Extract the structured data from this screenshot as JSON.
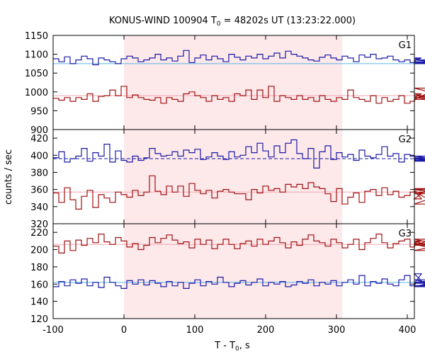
{
  "chart_data": {
    "type": "line",
    "title": "KONUS-WIND 100904 T",
    "title_sub": "0",
    "title_rest": " = 48202s UT (13:23:22.000)",
    "xlabel": "T - T",
    "xlabel_sub": "0",
    "xlabel_rest": ", s",
    "ylabel": "counts / sec",
    "xlim": [
      -100,
      410
    ],
    "xticks": [
      -100,
      0,
      100,
      200,
      300,
      400
    ],
    "shaded_interval": [
      0,
      308
    ],
    "shade_color": "#fde8ea",
    "bin_width": 8,
    "x_start": -100,
    "panels": [
      {
        "name": "G1",
        "ylim": [
          900,
          1150
        ],
        "yticks": [
          900,
          950,
          1000,
          1050,
          1100,
          1150
        ],
        "series": [
          {
            "color": "#1a1aa8",
            "background_level": 1075,
            "background_color": "#5ab4e6",
            "background_dashed": false,
            "values": [
              1088,
              1080,
              1093,
              1075,
              1085,
              1095,
              1088,
              1072,
              1090,
              1085,
              1080,
              1075,
              1088,
              1095,
              1090,
              1080,
              1085,
              1090,
              1100,
              1085,
              1090,
              1082,
              1095,
              1110,
              1078,
              1090,
              1098,
              1085,
              1095,
              1088,
              1080,
              1100,
              1092,
              1085,
              1095,
              1090,
              1100,
              1088,
              1095,
              1103,
              1090,
              1108,
              1100,
              1095,
              1090,
              1085,
              1082,
              1092,
              1098,
              1090,
              1085,
              1095,
              1090,
              1080,
              1098,
              1092,
              1100,
              1088,
              1090,
              1095,
              1085,
              1080,
              1085,
              1078,
              1085,
              1090,
              1080,
              1075,
              1085,
              1078,
              1075
            ]
          },
          {
            "color": "#a01010",
            "background_level": 990,
            "background_color": "#f2a6b4",
            "background_dashed": false,
            "values": [
              983,
              978,
              985,
              975,
              985,
              980,
              995,
              975,
              988,
              990,
              1005,
              990,
              1015,
              985,
              992,
              985,
              980,
              978,
              985,
              970,
              985,
              980,
              975,
              995,
              1000,
              990,
              985,
              975,
              990,
              980,
              985,
              975,
              995,
              990,
              1005,
              980,
              1005,
              985,
              1015,
              975,
              990,
              985,
              980,
              990,
              980,
              985,
              975,
              990,
              980,
              975,
              985,
              980,
              1005,
              985,
              980,
              975,
              990,
              970,
              985,
              975,
              980,
              990,
              970,
              975,
              985,
              995,
              985,
              980,
              1010,
              990,
              980
            ]
          }
        ]
      },
      {
        "name": "G2",
        "ylim": [
          320,
          430
        ],
        "yticks": [
          320,
          340,
          360,
          380,
          400,
          420
        ],
        "series": [
          {
            "color": "#1a1aa8",
            "background_level": 396,
            "background_color": "#5ab4e6",
            "background_dashed": true,
            "values": [
              397,
              404,
              392,
              396,
              399,
              408,
              393,
              403,
              399,
              413,
              392,
              405,
              394,
              392,
              399,
              394,
              397,
              408,
              402,
              399,
              400,
              404,
              399,
              406,
              403,
              407,
              395,
              398,
              403,
              399,
              395,
              404,
              398,
              400,
              410,
              403,
              414,
              405,
              398,
              411,
              403,
              414,
              418,
              402,
              396,
              408,
              385,
              404,
              411,
              395,
              403,
              398,
              401,
              394,
              406,
              399,
              397,
              401,
              410,
              399,
              402,
              392,
              401,
              399,
              395,
              397,
              393,
              396,
              399,
              394,
              399
            ]
          },
          {
            "color": "#a01010",
            "background_level": 357,
            "background_color": "#f2a6b4",
            "background_dashed": false,
            "values": [
              356,
              345,
              362,
              348,
              337,
              352,
              359,
              339,
              354,
              350,
              345,
              357,
              354,
              351,
              359,
              353,
              357,
              376,
              358,
              354,
              364,
              357,
              364,
              352,
              367,
              359,
              355,
              359,
              350,
              358,
              360,
              357,
              355,
              355,
              348,
              360,
              356,
              364,
              359,
              361,
              357,
              366,
              363,
              366,
              361,
              368,
              363,
              361,
              355,
              346,
              361,
              343,
              351,
              356,
              345,
              358,
              360,
              353,
              362,
              354,
              358,
              351,
              353,
              357,
              358,
              349,
              360,
              357,
              343,
              355,
              361
            ]
          }
        ]
      },
      {
        "name": "G3",
        "ylim": [
          120,
          230
        ],
        "yticks": [
          120,
          140,
          160,
          180,
          200,
          220
        ],
        "series": [
          {
            "color": "#a01010",
            "background_level": 206,
            "background_color": "#f2a6b4",
            "background_dashed": false,
            "values": [
              204,
              196,
              210,
              199,
              211,
              205,
              213,
              208,
              218,
              209,
              206,
              214,
              210,
              203,
              207,
              200,
              205,
              214,
              208,
              213,
              217,
              211,
              207,
              209,
              202,
              212,
              206,
              211,
              201,
              206,
              212,
              206,
              201,
              207,
              210,
              204,
              212,
              206,
              210,
              214,
              208,
              202,
              209,
              205,
              212,
              217,
              210,
              208,
              204,
              212,
              208,
              202,
              206,
              212,
              200,
              208,
              213,
              218,
              208,
              202,
              207,
              210,
              212,
              203,
              208,
              210,
              205,
              212,
              206,
              199,
              207
            ]
          },
          {
            "color": "#1a1aa8",
            "background_level": 162,
            "background_color": "#5ab4e6",
            "background_dashed": false,
            "values": [
              157,
              163,
              158,
              165,
              161,
              166,
              158,
              162,
              156,
              168,
              162,
              158,
              155,
              164,
              160,
              165,
              159,
              164,
              161,
              157,
              163,
              158,
              162,
              155,
              161,
              165,
              158,
              163,
              160,
              168,
              162,
              157,
              161,
              164,
              159,
              162,
              166,
              158,
              162,
              160,
              163,
              157,
              159,
              163,
              161,
              165,
              158,
              162,
              160,
              164,
              158,
              162,
              165,
              160,
              170,
              158,
              163,
              161,
              166,
              160,
              158,
              165,
              170,
              158,
              161,
              172,
              157,
              162,
              165,
              158,
              161
            ]
          }
        ]
      }
    ]
  }
}
